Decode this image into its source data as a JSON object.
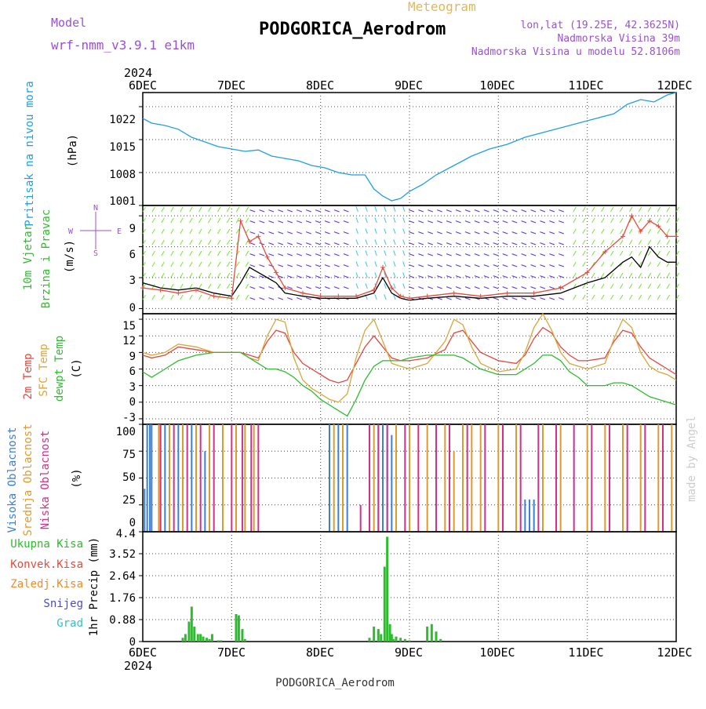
{
  "header": {
    "model_label": "Model",
    "model_name": "wrf-nmm_v3.9.1 e1km",
    "meteogram_label": "Meteogram",
    "station_title": "PODGORICA_Aerodrom",
    "lonlat": "lon,lat (19.25E, 42.3625N)",
    "elevation": "Nadmorska Visina 39m",
    "model_elevation": "Nadmorska Visina u modelu 52.8106m"
  },
  "footer": {
    "station": "PODGORICA_Aerodrom",
    "credit": "made by Angel"
  },
  "colors": {
    "pressure": "#1e9fe6",
    "wind_speed": "#000000",
    "gust": "#e84a3a",
    "t2m": "#e8453c",
    "tsfc": "#d9a63b",
    "dewpt": "#2ebd2e",
    "cloud_high": "#3b7fd6",
    "cloud_mid": "#e09a2c",
    "cloud_low": "#d62f8a",
    "precip": "#2bbd2b",
    "title": "#000000",
    "label": "#9b4fd6"
  },
  "chart_data": [
    {
      "type": "line",
      "panel": "pressure",
      "ylabel_parts": [
        "Pritisak na nivou mora",
        "(hPa)"
      ],
      "ylim": [
        1001,
        1025
      ],
      "yticks": [
        "1001",
        "1008",
        "1015",
        "1022"
      ],
      "top_axis": {
        "year": "2024",
        "ticks": [
          "6DEC",
          "7DEC",
          "8DEC",
          "9DEC",
          "10DEC",
          "11DEC",
          "12DEC"
        ]
      },
      "series": [
        {
          "color": "#1e9fe6",
          "x": [
            0,
            0.1,
            0.25,
            0.4,
            0.55,
            0.7,
            0.85,
            1.0,
            1.15,
            1.3,
            1.45,
            1.6,
            1.75,
            1.9,
            2.05,
            2.2,
            2.35,
            2.5,
            2.6,
            2.7,
            2.8,
            2.9,
            3.0,
            3.15,
            3.3,
            3.5,
            3.7,
            3.9,
            4.1,
            4.3,
            4.5,
            4.7,
            4.9,
            5.1,
            5.3,
            5.45,
            5.6,
            5.75,
            5.9,
            6.0
          ],
          "y": [
            1019.5,
            1018.5,
            1018.0,
            1017.2,
            1015.5,
            1014.5,
            1013.5,
            1013.0,
            1012.5,
            1012.8,
            1011.5,
            1011.0,
            1010.5,
            1009.5,
            1009.0,
            1008.0,
            1007.5,
            1007.5,
            1004.5,
            1003.0,
            1002.0,
            1002.5,
            1004.0,
            1005.5,
            1007.5,
            1009.5,
            1011.5,
            1013.0,
            1014.0,
            1015.5,
            1016.5,
            1017.5,
            1018.5,
            1019.5,
            1020.5,
            1022.5,
            1023.5,
            1023.0,
            1024.5,
            1025.0
          ]
        }
      ]
    },
    {
      "type": "line",
      "panel": "wind",
      "ylabel_parts": [
        "10m Vjetar",
        "Brzina i Pravac",
        "(m/s)"
      ],
      "compass": [
        "N",
        "E",
        "S",
        "W"
      ],
      "ylim": [
        -0.5,
        10
      ],
      "yticks": [
        "0",
        "3",
        "6",
        "9"
      ],
      "series": [
        {
          "name": "wind speed",
          "color": "#000000",
          "x": [
            0,
            0.2,
            0.4,
            0.6,
            0.8,
            1.0,
            1.1,
            1.2,
            1.3,
            1.4,
            1.5,
            1.6,
            1.8,
            2.0,
            2.2,
            2.4,
            2.6,
            2.7,
            2.8,
            2.9,
            3.0,
            3.2,
            3.5,
            3.8,
            4.1,
            4.4,
            4.7,
            5.0,
            5.2,
            5.4,
            5.5,
            5.6,
            5.7,
            5.8,
            5.9,
            6.0
          ],
          "y": [
            2.5,
            2.0,
            1.8,
            2.0,
            1.5,
            1.2,
            2.5,
            4.0,
            3.5,
            3.0,
            2.5,
            1.5,
            1.2,
            1.0,
            1.0,
            1.0,
            1.5,
            3.0,
            1.5,
            1.0,
            0.8,
            1.0,
            1.2,
            1.0,
            1.2,
            1.2,
            1.5,
            2.5,
            3.0,
            4.5,
            5.0,
            4.0,
            6.0,
            5.0,
            4.5,
            4.5
          ]
        },
        {
          "name": "gust",
          "color": "#e84a3a",
          "x": [
            0,
            0.2,
            0.4,
            0.6,
            0.8,
            1.0,
            1.1,
            1.2,
            1.3,
            1.4,
            1.5,
            1.6,
            1.8,
            2.0,
            2.2,
            2.4,
            2.6,
            2.7,
            2.8,
            2.9,
            3.0,
            3.2,
            3.5,
            3.8,
            4.1,
            4.4,
            4.7,
            5.0,
            5.2,
            5.4,
            5.5,
            5.6,
            5.7,
            5.8,
            5.9,
            6.0
          ],
          "y": [
            2.0,
            1.8,
            1.5,
            1.8,
            1.2,
            1.0,
            8.5,
            6.5,
            7.0,
            5.0,
            3.5,
            2.0,
            1.5,
            1.2,
            1.2,
            1.2,
            1.8,
            4.0,
            2.0,
            1.2,
            1.0,
            1.2,
            1.5,
            1.2,
            1.5,
            1.5,
            2.0,
            3.5,
            5.5,
            7.0,
            9.0,
            7.5,
            8.5,
            8.0,
            7.0,
            7.0
          ]
        }
      ]
    },
    {
      "type": "line",
      "panel": "temperature",
      "ylabel_parts": [
        "2m Temp",
        "SFC Temp",
        "dewpt Temp",
        "(C)"
      ],
      "ylim": [
        -4,
        16
      ],
      "yticks": [
        "-3",
        "0",
        "3",
        "6",
        "9",
        "12",
        "15"
      ],
      "series": [
        {
          "name": "2m Temp",
          "color": "#e8453c",
          "x": [
            0,
            0.1,
            0.25,
            0.4,
            0.6,
            0.8,
            1.0,
            1.1,
            1.2,
            1.3,
            1.4,
            1.5,
            1.6,
            1.7,
            1.8,
            1.9,
            2.0,
            2.1,
            2.2,
            2.3,
            2.4,
            2.5,
            2.6,
            2.7,
            2.8,
            2.9,
            3.0,
            3.2,
            3.4,
            3.5,
            3.6,
            3.7,
            3.8,
            4.0,
            4.2,
            4.3,
            4.4,
            4.5,
            4.6,
            4.7,
            4.8,
            4.9,
            5.0,
            5.2,
            5.3,
            5.4,
            5.5,
            5.6,
            5.7,
            5.8,
            5.9,
            6.0
          ],
          "y": [
            8.5,
            8.0,
            8.5,
            10.0,
            9.5,
            9.0,
            9.0,
            9.0,
            8.5,
            8.0,
            11.0,
            13.0,
            12.5,
            9.0,
            7.0,
            6.0,
            5.0,
            4.0,
            3.5,
            4.0,
            7.0,
            10.0,
            12.0,
            10.0,
            8.0,
            7.5,
            7.5,
            8.0,
            9.5,
            12.5,
            13.0,
            11.0,
            9.0,
            7.5,
            7.0,
            8.5,
            11.5,
            13.5,
            12.5,
            10.0,
            8.5,
            7.5,
            7.5,
            8.0,
            11.0,
            13.0,
            12.5,
            10.0,
            8.0,
            7.0,
            6.0,
            5.0
          ]
        },
        {
          "name": "SFC Temp",
          "color": "#d9a63b",
          "x": [
            0,
            0.1,
            0.25,
            0.4,
            0.6,
            0.8,
            1.0,
            1.1,
            1.2,
            1.3,
            1.4,
            1.5,
            1.6,
            1.7,
            1.8,
            1.9,
            2.0,
            2.1,
            2.2,
            2.3,
            2.4,
            2.5,
            2.6,
            2.7,
            2.8,
            2.9,
            3.0,
            3.2,
            3.4,
            3.5,
            3.6,
            3.7,
            3.8,
            4.0,
            4.2,
            4.3,
            4.4,
            4.5,
            4.6,
            4.7,
            4.8,
            4.9,
            5.0,
            5.2,
            5.3,
            5.4,
            5.5,
            5.6,
            5.7,
            5.8,
            5.9,
            6.0
          ],
          "y": [
            9.0,
            8.5,
            9.0,
            10.5,
            10.0,
            9.0,
            9.0,
            9.0,
            8.0,
            7.5,
            12.0,
            15.0,
            14.5,
            8.0,
            4.0,
            2.5,
            1.5,
            0.5,
            0.0,
            1.5,
            8.0,
            13.0,
            15.0,
            11.0,
            7.0,
            6.5,
            6.0,
            7.0,
            11.0,
            15.0,
            14.0,
            10.0,
            7.0,
            5.5,
            6.0,
            9.0,
            13.5,
            16.0,
            13.0,
            9.0,
            7.0,
            6.5,
            6.0,
            7.0,
            11.5,
            15.0,
            13.5,
            9.0,
            6.5,
            5.5,
            5.0,
            4.0
          ]
        },
        {
          "name": "dewpt Temp",
          "color": "#2ebd2e",
          "x": [
            0,
            0.1,
            0.25,
            0.4,
            0.6,
            0.8,
            1.0,
            1.1,
            1.2,
            1.3,
            1.4,
            1.5,
            1.6,
            1.7,
            1.8,
            1.9,
            2.0,
            2.1,
            2.2,
            2.3,
            2.4,
            2.5,
            2.6,
            2.7,
            2.8,
            2.9,
            3.0,
            3.2,
            3.4,
            3.5,
            3.6,
            3.7,
            3.8,
            4.0,
            4.2,
            4.3,
            4.4,
            4.5,
            4.6,
            4.7,
            4.8,
            4.9,
            5.0,
            5.2,
            5.3,
            5.4,
            5.5,
            5.6,
            5.7,
            5.8,
            5.9,
            6.0
          ],
          "y": [
            5.5,
            4.5,
            6.0,
            7.5,
            8.5,
            9.0,
            9.0,
            9.0,
            8.0,
            7.0,
            6.0,
            6.0,
            5.5,
            4.5,
            3.0,
            2.0,
            0.5,
            -0.5,
            -1.5,
            -2.5,
            0.5,
            4.0,
            6.5,
            7.5,
            7.5,
            7.5,
            8.0,
            8.5,
            8.5,
            8.5,
            8.0,
            7.0,
            6.0,
            5.0,
            5.0,
            6.0,
            7.0,
            8.5,
            8.5,
            7.5,
            5.5,
            4.5,
            3.0,
            3.0,
            3.5,
            3.5,
            3.0,
            2.0,
            1.0,
            0.5,
            0.0,
            -0.5
          ]
        }
      ]
    },
    {
      "type": "bar",
      "panel": "cloud",
      "ylabel_parts": [
        "Visoka Oblacnost",
        "Srednja Oblacnost",
        "Niska Oblacnost",
        "(%)"
      ],
      "ylim": [
        0,
        100
      ],
      "yticks": [
        "0",
        "25",
        "50",
        "75",
        "100"
      ],
      "series": [
        {
          "name": "Visoka Oblacnost",
          "color": "#3b7fd6",
          "x": [
            0.02,
            0.05,
            0.08,
            0.1,
            0.25,
            0.4,
            0.55,
            0.7,
            2.1,
            2.2,
            2.3,
            2.7,
            2.75,
            2.8,
            4.3,
            4.35,
            4.4
          ],
          "y": [
            40,
            100,
            100,
            100,
            100,
            100,
            100,
            75,
            100,
            100,
            100,
            100,
            100,
            90,
            30,
            30,
            30
          ]
        },
        {
          "name": "Srednja Oblacnost",
          "color": "#e09a2c",
          "x": [
            0.18,
            0.3,
            0.45,
            0.6,
            0.75,
            0.9,
            1.05,
            1.15,
            1.25,
            2.15,
            2.25,
            2.6,
            2.65,
            2.85,
            3.0,
            3.2,
            3.4,
            3.5,
            3.6,
            3.7,
            3.8,
            4.0,
            4.2,
            4.5,
            4.7,
            5.0,
            5.2,
            5.4,
            5.6,
            5.8,
            5.95
          ],
          "y": [
            100,
            100,
            100,
            100,
            100,
            100,
            100,
            100,
            100,
            100,
            100,
            100,
            100,
            100,
            100,
            100,
            100,
            75,
            100,
            100,
            100,
            100,
            100,
            100,
            100,
            100,
            100,
            100,
            100,
            100,
            100
          ]
        },
        {
          "name": "Niska Oblacnost",
          "color": "#d62f8a",
          "x": [
            0.2,
            0.35,
            0.5,
            0.65,
            0.8,
            1.0,
            1.12,
            1.22,
            1.3,
            2.45,
            2.55,
            2.65,
            2.75,
            2.95,
            3.1,
            3.3,
            3.45,
            3.65,
            3.85,
            4.05,
            4.25,
            4.45,
            4.65,
            4.85,
            5.05,
            5.25,
            5.45,
            5.65,
            5.85
          ],
          "y": [
            100,
            100,
            100,
            100,
            100,
            100,
            100,
            100,
            100,
            25,
            100,
            100,
            100,
            100,
            100,
            100,
            100,
            100,
            100,
            100,
            100,
            100,
            100,
            100,
            100,
            100,
            100,
            100,
            100
          ]
        }
      ]
    },
    {
      "type": "bar",
      "panel": "precip",
      "ylabel": "1hr Precip (mm)",
      "legend": [
        "Ukupna Kisa",
        "Konvek.Kisa",
        "Zaledj.Kisa",
        "Snijeg",
        "Grad"
      ],
      "legend_colors": [
        "#2bbd2b",
        "#e84a3a",
        "#f08a2a",
        "#4a4ad6",
        "#2ac6c6"
      ],
      "ylim": [
        0,
        4.4
      ],
      "yticks": [
        "0",
        "0.88",
        "1.76",
        "2.64",
        "3.52",
        "4.4"
      ],
      "bottom_axis": {
        "year": "2024",
        "ticks": [
          "6DEC",
          "7DEC",
          "8DEC",
          "9DEC",
          "10DEC",
          "11DEC",
          "12DEC"
        ]
      },
      "x": [
        0.45,
        0.48,
        0.52,
        0.55,
        0.58,
        0.62,
        0.65,
        0.68,
        0.72,
        0.75,
        0.78,
        0.85,
        0.88,
        1.05,
        1.08,
        1.12,
        1.15,
        2.55,
        2.6,
        2.65,
        2.68,
        2.72,
        2.75,
        2.78,
        2.8,
        2.82,
        2.85,
        2.9,
        2.95,
        3.0,
        3.2,
        3.25,
        3.3,
        3.35
      ],
      "values": [
        0.15,
        0.3,
        0.8,
        1.4,
        0.6,
        0.3,
        0.3,
        0.2,
        0.15,
        0.1,
        0.3,
        0.05,
        0.05,
        1.1,
        1.05,
        0.5,
        0.1,
        0.15,
        0.6,
        0.5,
        0.3,
        3.0,
        4.2,
        0.7,
        0.3,
        0.1,
        0.2,
        0.15,
        0.1,
        0.05,
        0.6,
        0.7,
        0.4,
        0.1
      ]
    }
  ]
}
